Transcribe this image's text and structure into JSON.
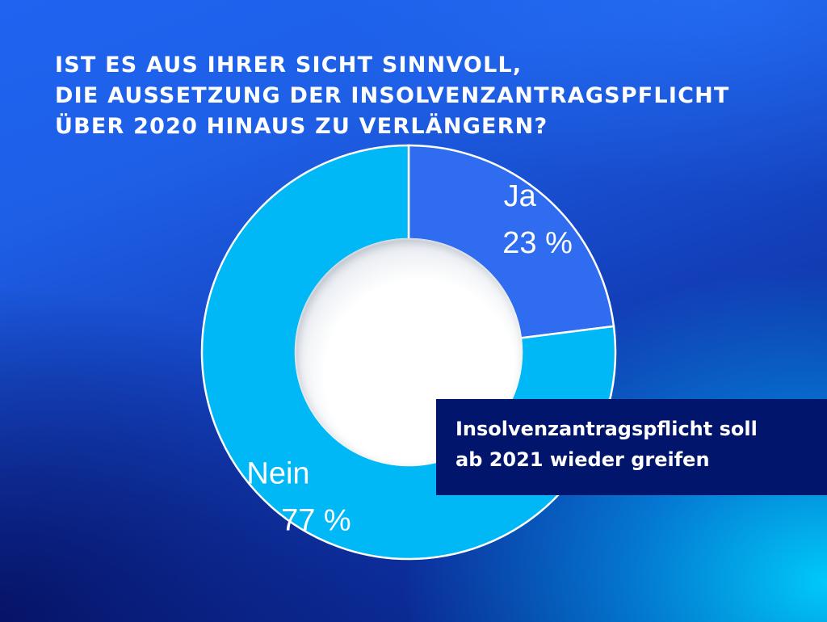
{
  "title_lines": [
    "IST ES AUS IHRER SICHT SINNVOLL,",
    "DIE AUSSETZUNG DER INSOLVENZANTRAGSPFLICHT",
    "ÜBER 2020 HINAUS ZU VERLÄNGERN?"
  ],
  "callout_lines": [
    "Insolvenzantragspflicht soll",
    "ab 2021 wieder greifen"
  ],
  "colors": {
    "ja": "#2f6cf0",
    "nein": "#00b8f5",
    "callout_bg": "#00156b"
  },
  "chart_data": {
    "type": "pie",
    "title": "IST ES AUS IHRER SICHT SINNVOLL, DIE AUSSETZUNG DER INSOLVENZANTRAGSPFLICHT ÜBER 2020 HINAUS ZU VERLÄNGERN?",
    "categories": [
      "Ja",
      "Nein"
    ],
    "values": [
      23,
      77
    ],
    "value_labels": [
      "23 %",
      "77 %"
    ],
    "unit": "%"
  }
}
